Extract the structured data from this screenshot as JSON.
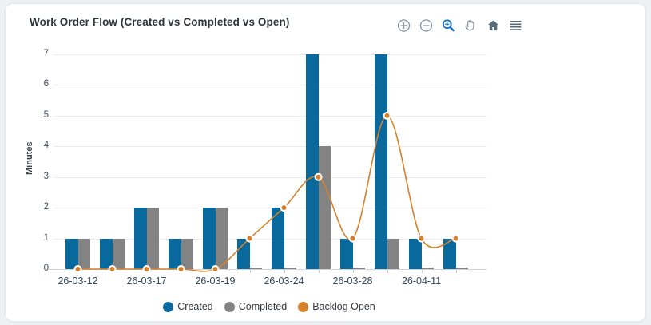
{
  "card": {
    "title": "Work Order Flow (Created vs Completed vs Open)"
  },
  "toolbar": {
    "icons": [
      {
        "name": "zoom-in-icon"
      },
      {
        "name": "zoom-out-icon"
      },
      {
        "name": "selection-zoom-icon"
      },
      {
        "name": "pan-hand-icon"
      },
      {
        "name": "home-reset-icon"
      },
      {
        "name": "menu-icon"
      }
    ]
  },
  "chart_data": {
    "type": "combo-bar-line",
    "title": "Work Order Flow (Created vs Completed vs Open)",
    "ylabel": "Minutes",
    "xlabel": "",
    "ylim": [
      0,
      7
    ],
    "ytick_step": 1,
    "grid": "horizontal",
    "num_slots": 12,
    "x_tick_labels": [
      "26-03-12",
      "26-03-17",
      "26-03-19",
      "26-03-24",
      "26-03-28",
      "26-04-11"
    ],
    "x_tick_label_slots": [
      0,
      2,
      4,
      6,
      8,
      10
    ],
    "series": [
      {
        "name": "Created",
        "type": "bar",
        "color": "#0a699c",
        "values": [
          1,
          1,
          2,
          1,
          2,
          1,
          2,
          7,
          1,
          7,
          1,
          1
        ]
      },
      {
        "name": "Completed",
        "type": "bar",
        "color": "#838383",
        "values": [
          1,
          1,
          2,
          1,
          2,
          0,
          0,
          4,
          0,
          1,
          0,
          0
        ]
      },
      {
        "name": "Backlog Open",
        "type": "line",
        "color": "#d5812c",
        "values": [
          0,
          0,
          0,
          0,
          0,
          1,
          2,
          3,
          1,
          5,
          1,
          1
        ]
      }
    ],
    "legend_position": "bottom"
  },
  "colors": {
    "page_bg": "#eef0f3",
    "card_bg": "#ffffff",
    "card_border": "#e4e6ea",
    "grid_line": "#ececec",
    "axis_line": "#cfd2d6",
    "tick_text": "#3c4d5e",
    "icon_light": "#8094a3",
    "icon_dark": "#5a6a77",
    "icon_blue": "#1873cc"
  }
}
